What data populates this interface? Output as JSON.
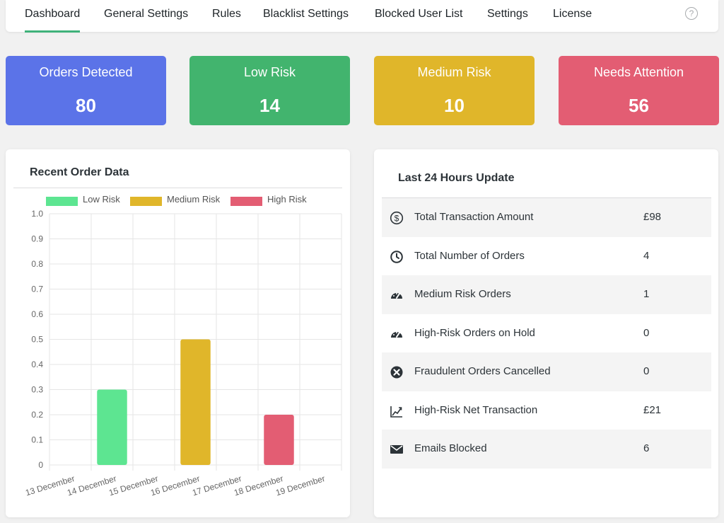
{
  "nav": {
    "tabs": [
      "Dashboard",
      "General Settings",
      "Rules",
      "Blacklist Settings",
      "Blocked User List",
      "Settings",
      "License"
    ],
    "active": "Dashboard",
    "help_icon": "help-circle-icon"
  },
  "stats": [
    {
      "label": "Orders Detected",
      "value": "80",
      "color": "#5b73e8"
    },
    {
      "label": "Low Risk",
      "value": "14",
      "color": "#42b46e"
    },
    {
      "label": "Medium Risk",
      "value": "10",
      "color": "#e0b62a"
    },
    {
      "label": "Needs Attention",
      "value": "56",
      "color": "#e35d73"
    }
  ],
  "chart_panel": {
    "title": "Recent Order Data"
  },
  "chart_data": {
    "type": "bar",
    "categories": [
      "13 December",
      "14 December",
      "15 December",
      "16 December",
      "17 December",
      "18 December",
      "19 December"
    ],
    "series": [
      {
        "name": "Low Risk",
        "color": "#5de591",
        "values": [
          0,
          0.3,
          0,
          0,
          0,
          0,
          0
        ]
      },
      {
        "name": "Medium Risk",
        "color": "#e0b62a",
        "values": [
          0,
          0,
          0,
          0.5,
          0,
          0,
          0
        ]
      },
      {
        "name": "High Risk",
        "color": "#e35d73",
        "values": [
          0,
          0,
          0,
          0,
          0,
          0.2,
          0
        ]
      }
    ],
    "ylim": [
      0,
      1.0
    ],
    "yticks": [
      "1.0",
      "0.9",
      "0.8",
      "0.7",
      "0.6",
      "0.5",
      "0.4",
      "0.3",
      "0.2",
      "0.1",
      "0"
    ],
    "grid": true,
    "legend": "top"
  },
  "update_panel": {
    "title": "Last 24 Hours Update",
    "rows": [
      {
        "icon": "dollar-circle-icon",
        "label": "Total Transaction Amount",
        "value": "£98"
      },
      {
        "icon": "clock-icon",
        "label": "Total Number of Orders",
        "value": "4"
      },
      {
        "icon": "gauge-icon",
        "label": "Medium Risk Orders",
        "value": "1"
      },
      {
        "icon": "gauge-icon",
        "label": "High-Risk Orders on Hold",
        "value": "0"
      },
      {
        "icon": "x-circle-icon",
        "label": "Fraudulent Orders Cancelled",
        "value": "0"
      },
      {
        "icon": "trend-up-icon",
        "label": "High-Risk Net Transaction",
        "value": "£21"
      },
      {
        "icon": "envelope-icon",
        "label": "Emails Blocked",
        "value": "6"
      }
    ]
  }
}
